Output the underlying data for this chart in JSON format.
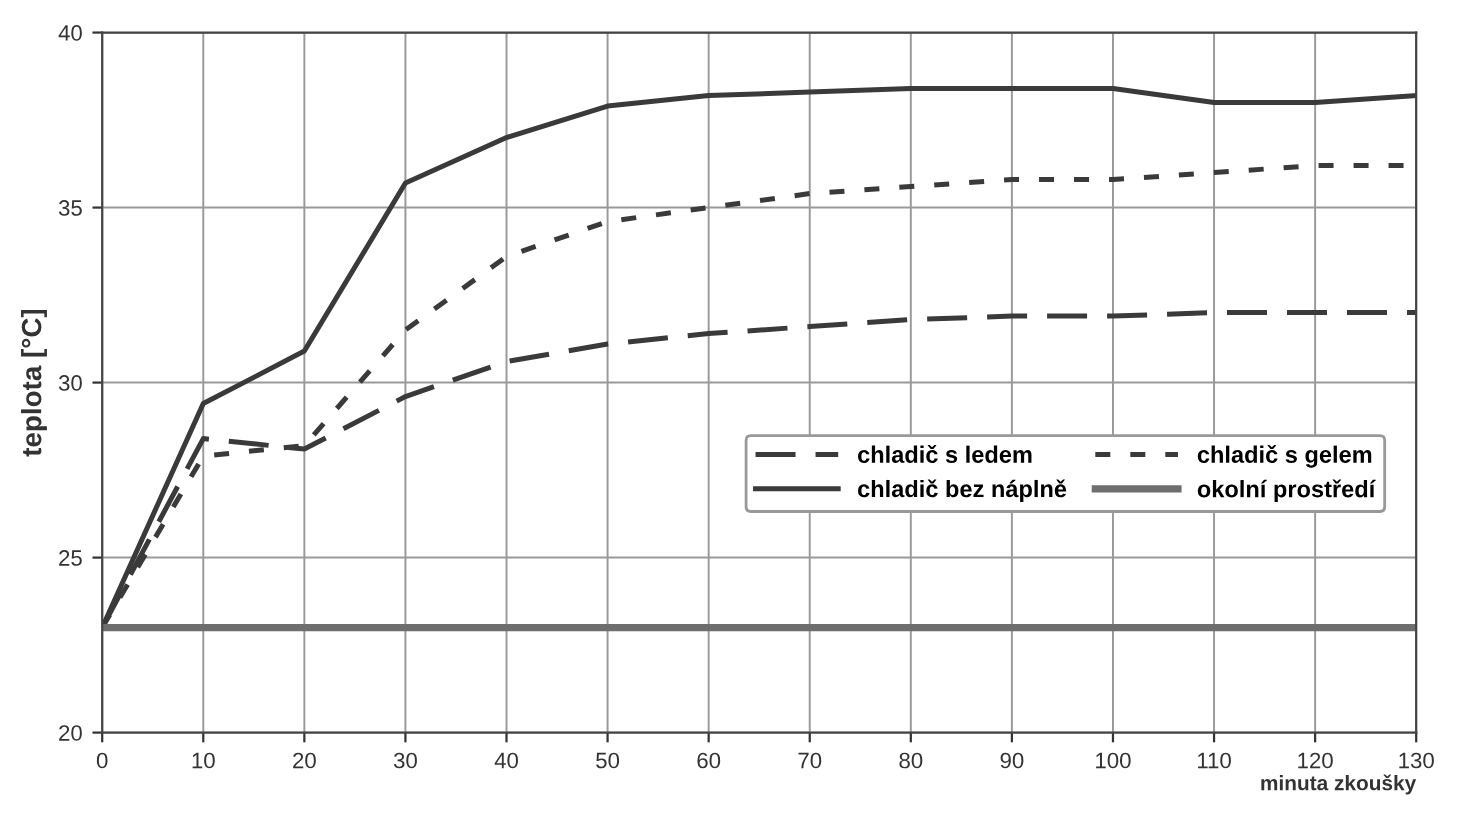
{
  "chart_data": {
    "type": "line",
    "xlabel": "minuta zkoušky",
    "ylabel": "teplota [°C]",
    "x": [
      0,
      10,
      20,
      30,
      40,
      50,
      60,
      70,
      80,
      90,
      100,
      110,
      120,
      130
    ],
    "series": [
      {
        "name": "chladič s ledem",
        "color": "#3a3a3a",
        "line_style": "dashed",
        "values": [
          23,
          28.4,
          28.1,
          29.6,
          30.6,
          31.1,
          31.4,
          31.6,
          31.8,
          31.9,
          31.9,
          32.0,
          32.0,
          32.0
        ]
      },
      {
        "name": "chladič s gelem",
        "color": "#3a3a3a",
        "line_style": "dotted",
        "values": [
          23,
          27.9,
          28.2,
          31.5,
          33.6,
          34.6,
          35.0,
          35.4,
          35.6,
          35.8,
          35.8,
          36.0,
          36.2,
          36.2
        ]
      },
      {
        "name": "chladič bez náplně",
        "color": "#3a3a3a",
        "line_style": "solid",
        "values": [
          23,
          29.4,
          30.9,
          35.7,
          37.0,
          37.9,
          38.2,
          38.3,
          38.4,
          38.4,
          38.4,
          38.0,
          38.0,
          38.2
        ]
      },
      {
        "name": "okolní prostředí",
        "color": "#6e6e6e",
        "line_style": "solid",
        "values": [
          23,
          23,
          23,
          23,
          23,
          23,
          23,
          23,
          23,
          23,
          23,
          23,
          23,
          23
        ]
      }
    ],
    "xlim": [
      0,
      130
    ],
    "ylim": [
      20,
      40
    ],
    "xticks": [
      0,
      10,
      20,
      30,
      40,
      50,
      60,
      70,
      80,
      90,
      100,
      110,
      120,
      130
    ],
    "yticks": [
      20,
      25,
      30,
      35,
      40
    ],
    "grid": true,
    "legend": "right",
    "marker": "none"
  }
}
